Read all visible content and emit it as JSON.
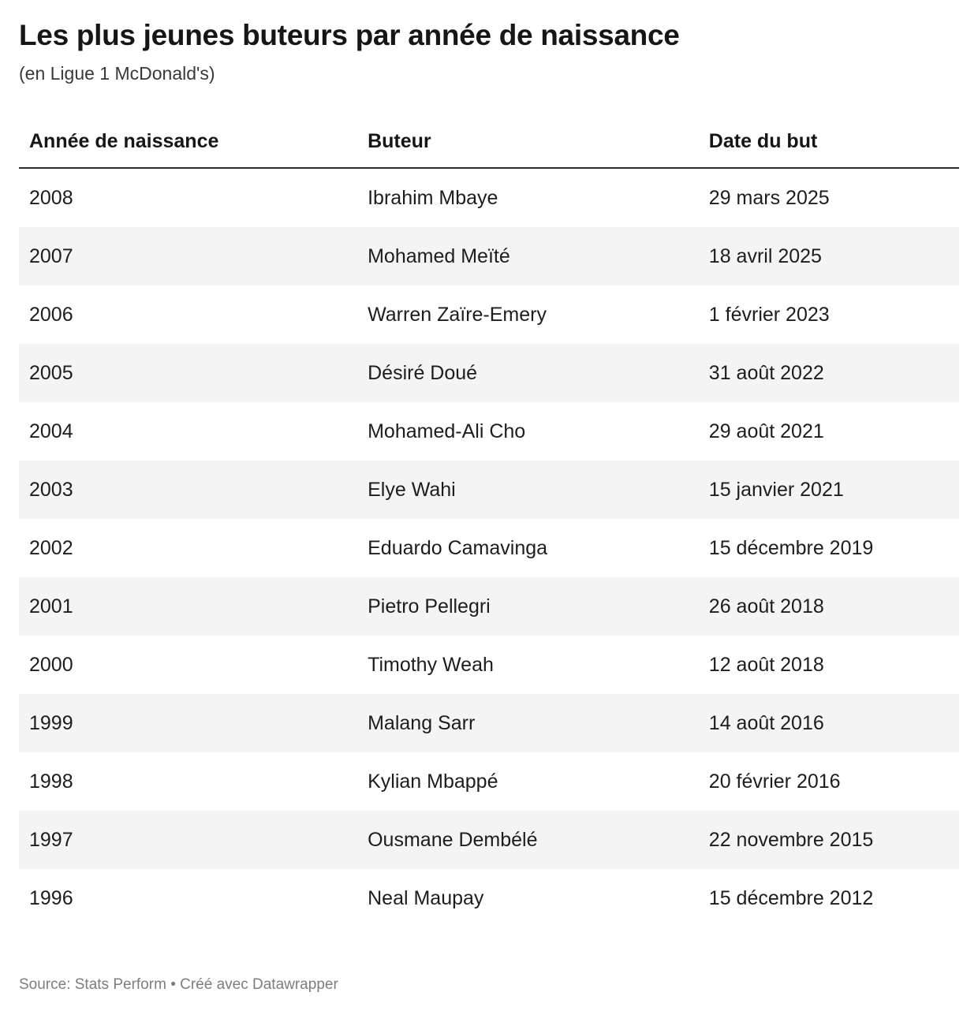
{
  "header": {
    "title": "Les plus jeunes buteurs par année de naissance",
    "subtitle": "(en Ligue 1 McDonald's)"
  },
  "chart_data": {
    "type": "table",
    "columns": [
      "Année de naissance",
      "Buteur",
      "Date du but"
    ],
    "rows": [
      [
        "2008",
        "Ibrahim Mbaye",
        "29 mars 2025"
      ],
      [
        "2007",
        "Mohamed Meïté",
        "18 avril 2025"
      ],
      [
        "2006",
        "Warren Zaïre-Emery",
        "1 février 2023"
      ],
      [
        "2005",
        "Désiré Doué",
        "31 août 2022"
      ],
      [
        "2004",
        "Mohamed-Ali Cho",
        "29 août 2021"
      ],
      [
        "2003",
        "Elye Wahi",
        "15 janvier 2021"
      ],
      [
        "2002",
        "Eduardo Camavinga",
        "15 décembre 2019"
      ],
      [
        "2001",
        "Pietro Pellegri",
        "26 août 2018"
      ],
      [
        "2000",
        "Timothy Weah",
        "12 août 2018"
      ],
      [
        "1999",
        "Malang Sarr",
        "14 août 2016"
      ],
      [
        "1998",
        "Kylian Mbappé",
        "20 février 2016"
      ],
      [
        "1997",
        "Ousmane Dembélé",
        "22 novembre 2015"
      ],
      [
        "1996",
        "Neal Maupay",
        "15 décembre 2012"
      ]
    ],
    "title": "Les plus jeunes buteurs par année de naissance",
    "subtitle": "(en Ligue 1 McDonald's)",
    "layout": {
      "zebra_striping": true,
      "zebra_start_row_index": 1
    }
  },
  "footer": {
    "source": "Source: Stats Perform",
    "separator": "•",
    "credit": "Créé avec Datawrapper"
  },
  "colors": {
    "background": "#ffffff",
    "title_text": "#161616",
    "subtitle_text": "#393939",
    "cell_text": "#1d1d1d",
    "zebra_row": "#f4f4f4",
    "header_border": "#2b2b2b",
    "footer_text": "#7d7d7d"
  }
}
